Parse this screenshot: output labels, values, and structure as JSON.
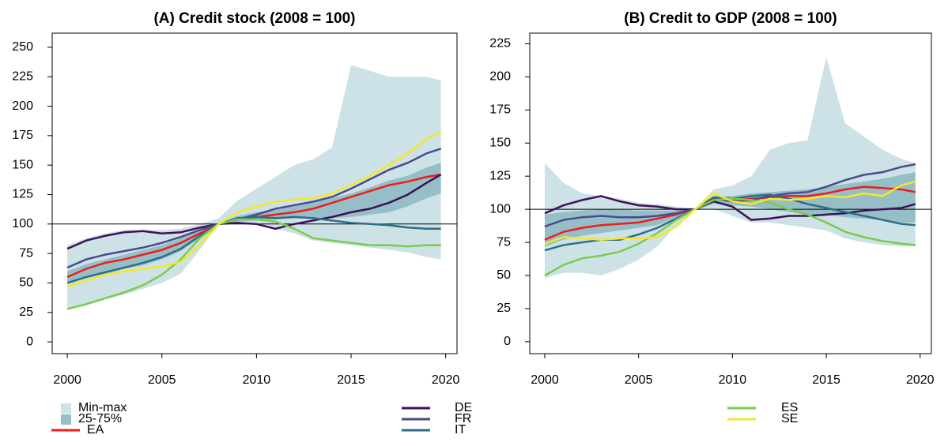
{
  "chart_data": [
    {
      "type": "line",
      "title": "(A) Credit stock (2008 = 100)",
      "x": [
        2000,
        2001,
        2002,
        2003,
        2004,
        2005,
        2006,
        2007,
        2008,
        2009,
        2010,
        2011,
        2012,
        2013,
        2014,
        2015,
        2016,
        2017,
        2018,
        2019,
        2019.75
      ],
      "xlim": [
        1999.2,
        2020.6
      ],
      "xticks": [
        2000,
        2005,
        2010,
        2015,
        2020
      ],
      "ylim": [
        -10,
        262
      ],
      "yticks": [
        0,
        25,
        50,
        75,
        100,
        125,
        150,
        175,
        200,
        225,
        250
      ],
      "hline": 100,
      "bands": [
        {
          "lower": [
            27,
            31,
            36,
            40,
            45,
            50,
            58,
            78,
            100,
            100,
            100,
            96,
            92,
            86,
            84,
            82,
            80,
            78,
            76,
            72,
            70
          ],
          "upper": [
            82,
            88,
            92,
            95,
            95,
            95,
            96,
            100,
            105,
            120,
            130,
            140,
            150,
            155,
            165,
            235,
            230,
            225,
            225,
            225,
            222
          ]
        },
        {
          "lower": [
            50,
            55,
            58,
            62,
            65,
            70,
            77,
            88,
            100,
            102,
            103,
            104,
            105,
            105,
            105,
            106,
            108,
            110,
            115,
            122,
            126
          ],
          "upper": [
            60,
            66,
            70,
            74,
            78,
            82,
            88,
            95,
            100,
            107,
            110,
            112,
            115,
            118,
            122,
            126,
            131,
            137,
            141,
            148,
            152
          ]
        }
      ],
      "series": [
        {
          "values": [
            55,
            62,
            67,
            70,
            74,
            78,
            84,
            92,
            100,
            104,
            106,
            108,
            110,
            113,
            118,
            123,
            128,
            133,
            136,
            140,
            142
          ]
        },
        {
          "values": [
            79,
            86,
            90,
            93,
            94,
            92,
            93,
            97,
            100,
            101,
            100,
            96,
            100,
            103,
            106,
            110,
            113,
            118,
            125,
            135,
            142
          ]
        },
        {
          "values": [
            63,
            70,
            74,
            77,
            80,
            84,
            89,
            95,
            100,
            104,
            108,
            113,
            116,
            119,
            123,
            130,
            138,
            146,
            152,
            160,
            164
          ]
        },
        {
          "values": [
            50,
            55,
            59,
            63,
            67,
            72,
            79,
            90,
            100,
            105,
            106,
            105,
            106,
            105,
            103,
            101,
            100,
            99,
            97,
            96,
            96
          ]
        },
        {
          "values": [
            28,
            32,
            37,
            42,
            48,
            57,
            70,
            88,
            100,
            104,
            104,
            102,
            96,
            88,
            86,
            84,
            82,
            82,
            81,
            82,
            82
          ]
        },
        {
          "values": [
            47,
            52,
            57,
            60,
            62,
            64,
            68,
            82,
            100,
            110,
            115,
            119,
            121,
            122,
            126,
            133,
            141,
            150,
            160,
            172,
            178
          ]
        }
      ]
    },
    {
      "type": "line",
      "title": "(B) Credit to GDP (2008 = 100)",
      "x": [
        2000,
        2001,
        2002,
        2003,
        2004,
        2005,
        2006,
        2007,
        2008,
        2009,
        2010,
        2011,
        2012,
        2013,
        2014,
        2015,
        2016,
        2017,
        2018,
        2019,
        2019.75
      ],
      "xlim": [
        1999.2,
        2020.6
      ],
      "xticks": [
        2000,
        2005,
        2010,
        2015,
        2020
      ],
      "ylim": [
        -9,
        233
      ],
      "yticks": [
        0,
        25,
        50,
        75,
        100,
        125,
        150,
        175,
        200,
        225
      ],
      "hline": 100,
      "bands": [
        {
          "lower": [
            48,
            52,
            52,
            50,
            55,
            62,
            72,
            88,
            100,
            100,
            95,
            90,
            90,
            88,
            86,
            84,
            78,
            75,
            73,
            72,
            72
          ],
          "upper": [
            135,
            120,
            112,
            110,
            108,
            105,
            104,
            102,
            100,
            115,
            118,
            125,
            145,
            150,
            152,
            215,
            165,
            155,
            145,
            138,
            135
          ]
        },
        {
          "lower": [
            72,
            77,
            80,
            82,
            84,
            86,
            88,
            94,
            100,
            104,
            103,
            102,
            100,
            98,
            96,
            96,
            94,
            93,
            92,
            90,
            90
          ],
          "upper": [
            96,
            98,
            99,
            100,
            100,
            99,
            99,
            99,
            100,
            110,
            110,
            112,
            113,
            114,
            115,
            117,
            119,
            121,
            123,
            126,
            128
          ]
        }
      ],
      "series": [
        {
          "values": [
            77,
            83,
            86,
            88,
            89,
            90,
            93,
            96,
            100,
            108,
            107,
            108,
            109,
            110,
            110,
            112,
            115,
            117,
            116,
            115,
            113
          ]
        },
        {
          "values": [
            97,
            103,
            107,
            110,
            106,
            103,
            102,
            100,
            100,
            106,
            102,
            92,
            93,
            95,
            95,
            96,
            97,
            99,
            100,
            101,
            104
          ]
        },
        {
          "values": [
            87,
            92,
            94,
            95,
            94,
            94,
            95,
            97,
            100,
            108,
            106,
            107,
            110,
            112,
            113,
            117,
            122,
            126,
            128,
            132,
            134
          ]
        },
        {
          "values": [
            69,
            73,
            75,
            77,
            77,
            81,
            86,
            93,
            100,
            109,
            108,
            110,
            111,
            108,
            104,
            101,
            98,
            95,
            92,
            89,
            88
          ]
        },
        {
          "values": [
            50,
            58,
            63,
            65,
            68,
            74,
            82,
            92,
            100,
            107,
            108,
            107,
            105,
            100,
            96,
            90,
            83,
            79,
            76,
            74,
            73
          ]
        },
        {
          "values": [
            74,
            79,
            78,
            77,
            78,
            78,
            79,
            87,
            100,
            112,
            106,
            104,
            108,
            107,
            108,
            110,
            109,
            112,
            110,
            118,
            121
          ]
        }
      ]
    }
  ],
  "legend": {
    "bands": [
      {
        "name": "Min-max",
        "color": "#cde2e6"
      },
      {
        "name": "25-75%",
        "color": "#95bec6"
      }
    ],
    "lines": [
      {
        "name": "EA",
        "color": "#ee1c1c"
      },
      {
        "name": "DE",
        "color": "#3f0f5a"
      },
      {
        "name": "FR",
        "color": "#4a4a90"
      },
      {
        "name": "IT",
        "color": "#2a6f86"
      },
      {
        "name": "ES",
        "color": "#7ccb4c"
      },
      {
        "name": "SE",
        "color": "#f6e62a"
      }
    ]
  }
}
